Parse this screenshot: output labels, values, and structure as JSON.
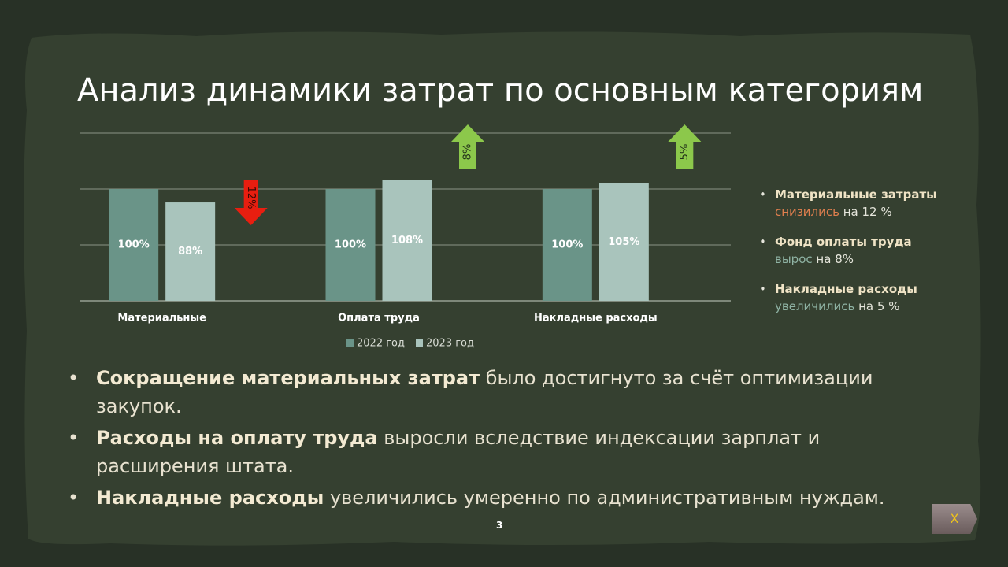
{
  "title": "Анализ динамики затрат по основным категориям",
  "chart_data": {
    "type": "bar",
    "categories": [
      "Материальные",
      "Оплата труда",
      "Накладные расходы"
    ],
    "series": [
      {
        "name": "2022 год",
        "color": "#6a9488",
        "values": [
          100,
          100,
          100
        ],
        "value_labels": [
          "100%",
          "100%",
          "100%"
        ]
      },
      {
        "name": "2023 год",
        "color": "#a9c4bc",
        "values": [
          88,
          108,
          105
        ],
        "value_labels": [
          "88%",
          "108%",
          "105%"
        ]
      }
    ],
    "ylim": [
      0,
      150
    ],
    "yticks": [
      0,
      50,
      100,
      150
    ],
    "grid": true,
    "annotations": [
      {
        "label": "12%",
        "direction": "down",
        "color": "#e81e10"
      },
      {
        "label": "8%",
        "direction": "up",
        "color": "#8cc84b"
      },
      {
        "label": "5%",
        "direction": "up",
        "color": "#8cc84b"
      }
    ]
  },
  "side_notes": [
    {
      "bold": "Материальные затраты",
      "accent": "снизились",
      "rest": "на 12 %"
    },
    {
      "bold": "Фонд оплаты труда",
      "accent": "вырос",
      "rest": "на 8%"
    },
    {
      "bold": "Накладные расходы",
      "accent": "увеличились",
      "rest": "на 5 %"
    }
  ],
  "bullets": [
    {
      "bold": "Сокращение материальных затрат",
      "rest": "было достигнуто за счёт оптимизации закупок."
    },
    {
      "bold": "Расходы на оплату труда",
      "rest": "выросли вследствие индексации зарплат и расширения штата."
    },
    {
      "bold": "Накладные расходы",
      "rest": "увеличились умеренно по административным нуждам."
    }
  ],
  "page_number": "3",
  "close_button": "X"
}
